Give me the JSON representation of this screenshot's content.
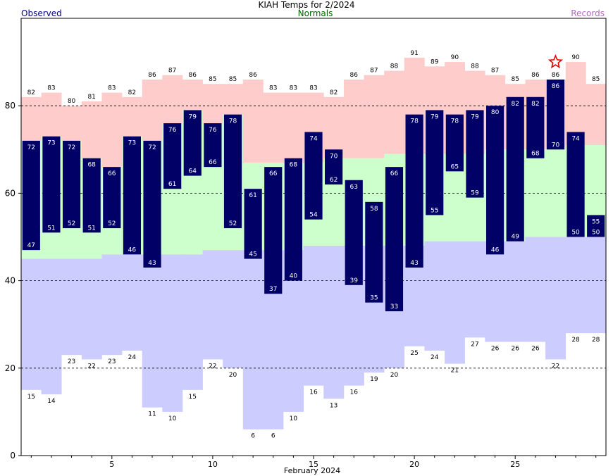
{
  "chart_data": {
    "type": "bar",
    "title": "KIAH Temps for 2/2024",
    "legend": {
      "observed": "Observed",
      "normals": "Normals",
      "records": "Records"
    },
    "xlabel": "February 2024",
    "x_ticks": [
      5,
      10,
      15,
      20,
      25
    ],
    "y_ticks": [
      0,
      20,
      40,
      60,
      80
    ],
    "ylim": [
      0,
      100
    ],
    "xlim": [
      0.5,
      29.5
    ],
    "grid": "dashed at 20, 40, 60, 80",
    "days": [
      1,
      2,
      3,
      4,
      5,
      6,
      7,
      8,
      9,
      10,
      11,
      12,
      13,
      14,
      15,
      16,
      17,
      18,
      19,
      20,
      21,
      22,
      23,
      24,
      25,
      26,
      27,
      28,
      29
    ],
    "series": [
      {
        "name": "Records",
        "high": [
          82,
          83,
          80,
          81,
          83,
          82,
          86,
          87,
          86,
          85,
          85,
          86,
          83,
          83,
          83,
          82,
          86,
          87,
          88,
          91,
          89,
          90,
          88,
          87,
          85,
          86,
          86,
          90,
          85
        ],
        "low": [
          15,
          14,
          23,
          22,
          23,
          24,
          11,
          10,
          15,
          22,
          20,
          6,
          6,
          10,
          16,
          13,
          16,
          19,
          20,
          25,
          24,
          21,
          27,
          26,
          26,
          26,
          22,
          28,
          28
        ]
      },
      {
        "name": "Normals",
        "high": [
          72,
          73,
          72,
          68,
          66,
          73,
          72,
          76,
          79,
          76,
          78,
          67,
          67,
          67,
          67,
          68,
          68,
          68,
          69,
          69,
          69,
          69,
          69,
          70,
          70,
          70,
          70,
          71,
          71
        ],
        "low": [
          45,
          45,
          45,
          45,
          46,
          46,
          46,
          46,
          46,
          47,
          47,
          47,
          47,
          47,
          48,
          48,
          48,
          48,
          48,
          48,
          49,
          49,
          49,
          49,
          49,
          50,
          50,
          50,
          50
        ]
      },
      {
        "name": "Observed",
        "high": [
          72,
          73,
          72,
          68,
          66,
          73,
          72,
          76,
          79,
          76,
          78,
          61,
          66,
          68,
          74,
          70,
          63,
          58,
          66,
          78,
          79,
          78,
          79,
          80,
          82,
          82,
          86,
          74,
          55
        ],
        "low": [
          47,
          51,
          52,
          51,
          52,
          46,
          43,
          61,
          64,
          66,
          52,
          45,
          37,
          40,
          54,
          62,
          39,
          35,
          33,
          43,
          55,
          65,
          59,
          46,
          49,
          68,
          70,
          50,
          50
        ]
      }
    ],
    "marker": {
      "day": 27,
      "value": 90,
      "symbol": "star",
      "meaning": "record high"
    },
    "colors": {
      "observed": "#000066",
      "normal": "#ccffcc",
      "record_high": "#ffcccc",
      "record_low": "#ccccff",
      "legend_observed": "#000080",
      "legend_normals": "#006400",
      "legend_records": "#b06ac0",
      "star": "#e00000"
    }
  }
}
